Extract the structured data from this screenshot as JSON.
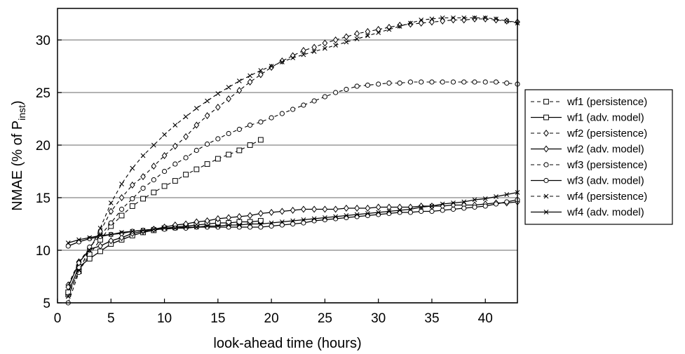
{
  "chart_data": {
    "type": "line",
    "xlabel": "look-ahead time (hours)",
    "ylabel": {
      "prefix": "NMAE (% of P",
      "sub": "inst",
      "suffix": ")"
    },
    "xlim": [
      0,
      43
    ],
    "ylim": [
      5,
      33
    ],
    "xticks": [
      0,
      5,
      10,
      15,
      20,
      25,
      30,
      35,
      40
    ],
    "yticks": [
      5,
      10,
      15,
      20,
      25,
      30
    ],
    "grid": "horizontal",
    "legend_position": "right",
    "series": [
      {
        "name": "wf1 (persistence)",
        "dash": true,
        "marker": "square",
        "x": [
          1,
          2,
          3,
          4,
          5,
          6,
          7,
          8,
          9,
          10,
          11,
          12,
          13,
          14,
          15,
          16,
          17,
          18,
          19
        ],
        "y": [
          5.8,
          8.0,
          9.6,
          11.0,
          12.3,
          13.3,
          14.2,
          14.9,
          15.5,
          16.1,
          16.6,
          17.2,
          17.7,
          18.2,
          18.7,
          19.1,
          19.5,
          20.0,
          20.5
        ]
      },
      {
        "name": "wf1 (adv. model)",
        "dash": false,
        "marker": "square",
        "x": [
          1,
          2,
          3,
          4,
          5,
          6,
          7,
          8,
          9,
          10,
          11,
          12,
          13,
          14,
          15,
          16,
          17,
          18,
          19
        ],
        "y": [
          6.0,
          8.4,
          9.2,
          9.9,
          10.6,
          11.0,
          11.4,
          11.7,
          11.9,
          12.1,
          12.2,
          12.3,
          12.4,
          12.5,
          12.6,
          12.6,
          12.7,
          12.7,
          12.8
        ]
      },
      {
        "name": "wf2 (persistence)",
        "dash": true,
        "marker": "diamond",
        "x": [
          1,
          2,
          3,
          4,
          5,
          6,
          7,
          8,
          9,
          10,
          11,
          12,
          13,
          14,
          15,
          16,
          17,
          18,
          19,
          20,
          21,
          22,
          23,
          24,
          25,
          26,
          27,
          28,
          29,
          30,
          31,
          32,
          33,
          34,
          35,
          36,
          37,
          38,
          39,
          40,
          41,
          42,
          43
        ],
        "y": [
          6.7,
          8.9,
          10.2,
          11.8,
          13.7,
          15.0,
          16.2,
          17.0,
          18.0,
          19.0,
          19.9,
          20.8,
          21.9,
          22.8,
          23.6,
          24.4,
          25.2,
          26.0,
          26.7,
          27.4,
          28.0,
          28.5,
          29.0,
          29.3,
          29.7,
          30.0,
          30.3,
          30.6,
          30.8,
          31.0,
          31.2,
          31.4,
          31.5,
          31.6,
          31.7,
          31.8,
          31.9,
          31.9,
          32.0,
          32.0,
          31.9,
          31.8,
          31.7
        ]
      },
      {
        "name": "wf2 (adv. model)",
        "dash": false,
        "marker": "diamond",
        "x": [
          1,
          2,
          3,
          4,
          5,
          6,
          7,
          8,
          9,
          10,
          11,
          12,
          13,
          14,
          15,
          16,
          17,
          18,
          19,
          20,
          21,
          22,
          23,
          24,
          25,
          26,
          27,
          28,
          29,
          30,
          31,
          32,
          33,
          34,
          35,
          36,
          37,
          38,
          39,
          40,
          41,
          42,
          43
        ],
        "y": [
          6.5,
          8.8,
          10.1,
          10.4,
          10.9,
          11.2,
          11.6,
          11.8,
          12.0,
          12.2,
          12.4,
          12.5,
          12.7,
          12.8,
          13.0,
          13.1,
          13.2,
          13.3,
          13.5,
          13.6,
          13.7,
          13.8,
          13.9,
          13.9,
          13.9,
          13.9,
          14.0,
          14.0,
          14.0,
          14.1,
          14.1,
          14.1,
          14.1,
          14.2,
          14.2,
          14.2,
          14.3,
          14.3,
          14.3,
          14.4,
          14.5,
          14.5,
          14.6
        ]
      },
      {
        "name": "wf3 (persistence)",
        "dash": true,
        "marker": "circle",
        "x": [
          1,
          2,
          3,
          4,
          5,
          6,
          7,
          8,
          9,
          10,
          11,
          12,
          13,
          14,
          15,
          16,
          17,
          18,
          19,
          20,
          21,
          22,
          23,
          24,
          25,
          26,
          27,
          28,
          29,
          30,
          31,
          32,
          33,
          34,
          35,
          36,
          37,
          38,
          39,
          40,
          41,
          42,
          43
        ],
        "y": [
          5.0,
          7.9,
          10.3,
          11.4,
          12.6,
          13.9,
          14.9,
          15.9,
          16.7,
          17.5,
          18.2,
          18.8,
          19.5,
          20.1,
          20.6,
          21.1,
          21.5,
          21.9,
          22.2,
          22.6,
          23.0,
          23.4,
          23.8,
          24.2,
          24.6,
          25.0,
          25.3,
          25.6,
          25.7,
          25.8,
          25.9,
          25.9,
          26.0,
          26.0,
          26.0,
          26.0,
          26.0,
          26.0,
          26.0,
          26.0,
          26.0,
          25.9,
          25.8
        ]
      },
      {
        "name": "wf3 (adv. model)",
        "dash": false,
        "marker": "circle",
        "x": [
          1,
          2,
          3,
          4,
          5,
          6,
          7,
          8,
          9,
          10,
          11,
          12,
          13,
          14,
          15,
          16,
          17,
          18,
          19,
          20,
          21,
          22,
          23,
          24,
          25,
          26,
          27,
          28,
          29,
          30,
          31,
          32,
          33,
          34,
          35,
          36,
          37,
          38,
          39,
          40,
          41,
          42,
          43
        ],
        "y": [
          10.4,
          10.8,
          11.1,
          11.3,
          11.5,
          11.6,
          11.8,
          11.9,
          12.0,
          12.0,
          12.1,
          12.1,
          12.2,
          12.2,
          12.2,
          12.2,
          12.2,
          12.2,
          12.2,
          12.3,
          12.4,
          12.5,
          12.6,
          12.8,
          12.9,
          13.0,
          13.1,
          13.2,
          13.3,
          13.4,
          13.5,
          13.6,
          13.6,
          13.7,
          13.7,
          13.8,
          13.9,
          14.0,
          14.1,
          14.2,
          14.4,
          14.6,
          14.8
        ]
      },
      {
        "name": "wf4 (persistence)",
        "dash": true,
        "marker": "cross",
        "x": [
          1,
          2,
          3,
          4,
          5,
          6,
          7,
          8,
          9,
          10,
          11,
          12,
          13,
          14,
          15,
          16,
          17,
          18,
          19,
          20,
          21,
          22,
          23,
          24,
          25,
          26,
          27,
          28,
          29,
          30,
          31,
          32,
          33,
          34,
          35,
          36,
          37,
          38,
          39,
          40,
          41,
          42,
          43
        ],
        "y": [
          5.6,
          8.1,
          10.0,
          12.1,
          14.5,
          16.3,
          17.8,
          19.0,
          20.0,
          21.0,
          21.9,
          22.7,
          23.5,
          24.2,
          24.9,
          25.5,
          26.1,
          26.6,
          27.1,
          27.5,
          27.9,
          28.3,
          28.6,
          28.9,
          29.2,
          29.5,
          29.8,
          30.1,
          30.4,
          30.7,
          31.0,
          31.3,
          31.6,
          31.9,
          32.0,
          32.1,
          32.1,
          32.1,
          32.1,
          32.1,
          32.0,
          31.8,
          31.6
        ]
      },
      {
        "name": "wf4 (adv. model)",
        "dash": false,
        "marker": "cross",
        "x": [
          1,
          2,
          3,
          4,
          5,
          6,
          7,
          8,
          9,
          10,
          11,
          12,
          13,
          14,
          15,
          16,
          17,
          18,
          19,
          20,
          21,
          22,
          23,
          24,
          25,
          26,
          27,
          28,
          29,
          30,
          31,
          32,
          33,
          34,
          35,
          36,
          37,
          38,
          39,
          40,
          41,
          42,
          43
        ],
        "y": [
          10.7,
          11.0,
          11.2,
          11.4,
          11.5,
          11.7,
          11.8,
          11.9,
          12.0,
          12.1,
          12.1,
          12.2,
          12.2,
          12.3,
          12.3,
          12.4,
          12.4,
          12.5,
          12.5,
          12.6,
          12.7,
          12.8,
          12.9,
          13.0,
          13.1,
          13.2,
          13.3,
          13.4,
          13.5,
          13.6,
          13.7,
          13.8,
          13.9,
          14.1,
          14.2,
          14.4,
          14.5,
          14.6,
          14.8,
          14.9,
          15.1,
          15.3,
          15.5
        ]
      }
    ]
  }
}
